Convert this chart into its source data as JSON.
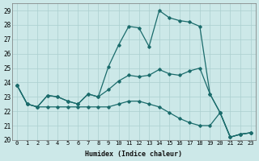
{
  "xlabel": "Humidex (Indice chaleur)",
  "bg_color": "#cce8e8",
  "line_color": "#1a6b6b",
  "grid_color": "#aacfcf",
  "xlim": [
    -0.5,
    23.5
  ],
  "ylim": [
    20,
    29.5
  ],
  "xticks": [
    0,
    1,
    2,
    3,
    4,
    5,
    6,
    7,
    8,
    9,
    10,
    11,
    12,
    13,
    14,
    15,
    16,
    17,
    18,
    19,
    20,
    21,
    22,
    23
  ],
  "yticks": [
    20,
    21,
    22,
    23,
    24,
    25,
    26,
    27,
    28,
    29
  ],
  "series": [
    [
      23.8,
      22.5,
      22.3,
      23.1,
      23.0,
      22.7,
      22.5,
      23.2,
      23.0,
      25.1,
      26.6,
      27.9,
      27.8,
      26.5,
      29.0,
      28.5,
      28.3,
      28.2,
      27.9,
      23.2,
      21.9,
      20.2,
      20.4,
      20.5
    ],
    [
      23.8,
      22.5,
      22.3,
      23.1,
      23.0,
      22.7,
      22.5,
      23.2,
      23.0,
      23.5,
      24.1,
      24.5,
      24.4,
      24.5,
      24.9,
      24.6,
      24.5,
      24.8,
      25.0,
      23.2,
      21.9,
      20.2,
      20.4,
      20.5
    ],
    [
      23.8,
      22.5,
      22.3,
      22.3,
      22.3,
      22.3,
      22.3,
      22.3,
      22.3,
      22.3,
      22.5,
      22.7,
      22.7,
      22.5,
      22.3,
      21.9,
      21.5,
      21.2,
      21.0,
      21.0,
      21.9,
      20.2,
      20.4,
      20.5
    ]
  ]
}
